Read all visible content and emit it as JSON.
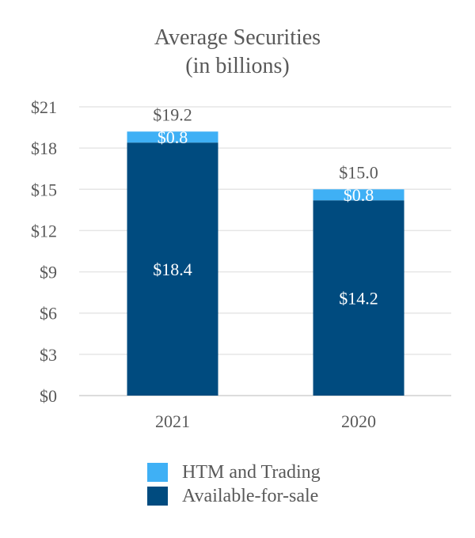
{
  "chart_data": {
    "type": "bar",
    "stacked": true,
    "title": "Average Securities",
    "subtitle": "(in billions)",
    "categories": [
      "2021",
      "2020"
    ],
    "series": [
      {
        "name": "Available-for-sale",
        "values": [
          18.4,
          14.2
        ],
        "labels": [
          "$18.4",
          "$14.2"
        ],
        "color": "#004b7f"
      },
      {
        "name": "HTM and Trading",
        "values": [
          0.8,
          0.8
        ],
        "labels": [
          "$0.8",
          "$0.8"
        ],
        "color": "#3fb0f5"
      }
    ],
    "totals": [
      19.2,
      15.0
    ],
    "total_labels": [
      "$19.2",
      "$15.0"
    ],
    "ylim": [
      0,
      21
    ],
    "yticks": [
      0,
      3,
      6,
      9,
      12,
      15,
      18,
      21
    ],
    "ytick_labels": [
      "$0",
      "$3",
      "$6",
      "$9",
      "$12",
      "$15",
      "$18",
      "$21"
    ],
    "grid": true,
    "legend_position": "bottom",
    "legend": [
      {
        "label": "HTM and Trading",
        "color": "#3fb0f5"
      },
      {
        "label": "Available-for-sale",
        "color": "#004b7f"
      }
    ]
  }
}
